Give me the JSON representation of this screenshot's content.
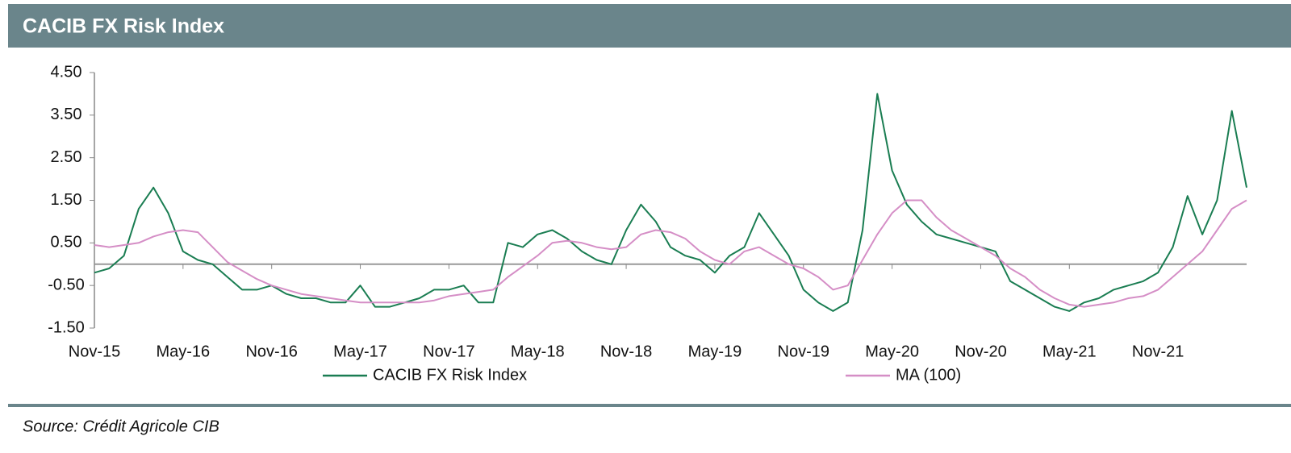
{
  "chart_data": {
    "type": "line",
    "title": "CACIB FX Risk Index",
    "source": "Source: Crédit Agricole CIB",
    "x": [
      "2015-11",
      "2015-12",
      "2016-01",
      "2016-02",
      "2016-03",
      "2016-04",
      "2016-05",
      "2016-06",
      "2016-07",
      "2016-08",
      "2016-09",
      "2016-10",
      "2016-11",
      "2016-12",
      "2017-01",
      "2017-02",
      "2017-03",
      "2017-04",
      "2017-05",
      "2017-06",
      "2017-07",
      "2017-08",
      "2017-09",
      "2017-10",
      "2017-11",
      "2017-12",
      "2018-01",
      "2018-02",
      "2018-03",
      "2018-04",
      "2018-05",
      "2018-06",
      "2018-07",
      "2018-08",
      "2018-09",
      "2018-10",
      "2018-11",
      "2018-12",
      "2019-01",
      "2019-02",
      "2019-03",
      "2019-04",
      "2019-05",
      "2019-06",
      "2019-07",
      "2019-08",
      "2019-09",
      "2019-10",
      "2019-11",
      "2019-12",
      "2020-01",
      "2020-02",
      "2020-03",
      "2020-04",
      "2020-05",
      "2020-06",
      "2020-07",
      "2020-08",
      "2020-09",
      "2020-10",
      "2020-11",
      "2020-12",
      "2021-01",
      "2021-02",
      "2021-03",
      "2021-04",
      "2021-05",
      "2021-06",
      "2021-07",
      "2021-08",
      "2021-09",
      "2021-10",
      "2021-11",
      "2021-12",
      "2022-01",
      "2022-02",
      "2022-03",
      "2022-04",
      "2022-05"
    ],
    "series": [
      {
        "name": "CACIB FX Risk Index",
        "color": "#1a7d52",
        "values": [
          -0.2,
          -0.1,
          0.2,
          1.3,
          1.8,
          1.2,
          0.3,
          0.1,
          0.0,
          -0.3,
          -0.6,
          -0.6,
          -0.5,
          -0.7,
          -0.8,
          -0.8,
          -0.9,
          -0.9,
          -0.5,
          -1.0,
          -1.0,
          -0.9,
          -0.8,
          -0.6,
          -0.6,
          -0.5,
          -0.9,
          -0.9,
          0.5,
          0.4,
          0.7,
          0.8,
          0.6,
          0.3,
          0.1,
          0.0,
          0.8,
          1.4,
          1.0,
          0.4,
          0.2,
          0.1,
          -0.2,
          0.2,
          0.4,
          1.2,
          0.7,
          0.2,
          -0.6,
          -0.9,
          -1.1,
          -0.9,
          0.8,
          4.0,
          2.2,
          1.4,
          1.0,
          0.7,
          0.6,
          0.5,
          0.4,
          0.3,
          -0.4,
          -0.6,
          -0.8,
          -1.0,
          -1.1,
          -0.9,
          -0.8,
          -0.6,
          -0.5,
          -0.4,
          -0.2,
          0.4,
          1.6,
          0.7,
          1.5,
          3.6,
          1.8
        ]
      },
      {
        "name": "MA (100)",
        "color": "#d58ec6",
        "values": [
          0.45,
          0.4,
          0.45,
          0.5,
          0.65,
          0.75,
          0.8,
          0.75,
          0.4,
          0.05,
          -0.15,
          -0.35,
          -0.5,
          -0.6,
          -0.7,
          -0.75,
          -0.8,
          -0.85,
          -0.9,
          -0.9,
          -0.9,
          -0.9,
          -0.9,
          -0.85,
          -0.75,
          -0.7,
          -0.65,
          -0.6,
          -0.3,
          -0.05,
          0.2,
          0.5,
          0.55,
          0.5,
          0.4,
          0.35,
          0.4,
          0.7,
          0.8,
          0.75,
          0.6,
          0.3,
          0.1,
          0.0,
          0.3,
          0.4,
          0.2,
          0.0,
          -0.1,
          -0.3,
          -0.6,
          -0.5,
          0.1,
          0.7,
          1.2,
          1.5,
          1.5,
          1.1,
          0.8,
          0.6,
          0.4,
          0.2,
          -0.1,
          -0.3,
          -0.6,
          -0.8,
          -0.95,
          -1.0,
          -0.95,
          -0.9,
          -0.8,
          -0.75,
          -0.6,
          -0.3,
          0.0,
          0.3,
          0.8,
          1.3,
          1.5
        ]
      }
    ],
    "xlim": [
      "2015-11",
      "2022-05"
    ],
    "xticks": [
      {
        "value": "2015-11",
        "label": "Nov-15"
      },
      {
        "value": "2016-05",
        "label": "May-16"
      },
      {
        "value": "2016-11",
        "label": "Nov-16"
      },
      {
        "value": "2017-05",
        "label": "May-17"
      },
      {
        "value": "2017-11",
        "label": "Nov-17"
      },
      {
        "value": "2018-05",
        "label": "May-18"
      },
      {
        "value": "2018-11",
        "label": "Nov-18"
      },
      {
        "value": "2019-05",
        "label": "May-19"
      },
      {
        "value": "2019-11",
        "label": "Nov-19"
      },
      {
        "value": "2020-05",
        "label": "May-20"
      },
      {
        "value": "2020-11",
        "label": "Nov-20"
      },
      {
        "value": "2021-05",
        "label": "May-21"
      },
      {
        "value": "2021-11",
        "label": "Nov-21"
      }
    ],
    "ylim": [
      -1.5,
      4.5
    ],
    "yticks": [
      {
        "value": 4.5,
        "label": "4.50"
      },
      {
        "value": 3.5,
        "label": "3.50"
      },
      {
        "value": 2.5,
        "label": "2.50"
      },
      {
        "value": 1.5,
        "label": "1.50"
      },
      {
        "value": 0.5,
        "label": "0.50"
      },
      {
        "value": -0.5,
        "label": "-0.50"
      },
      {
        "value": -1.5,
        "label": "-1.50"
      }
    ],
    "legend": "bottom"
  }
}
